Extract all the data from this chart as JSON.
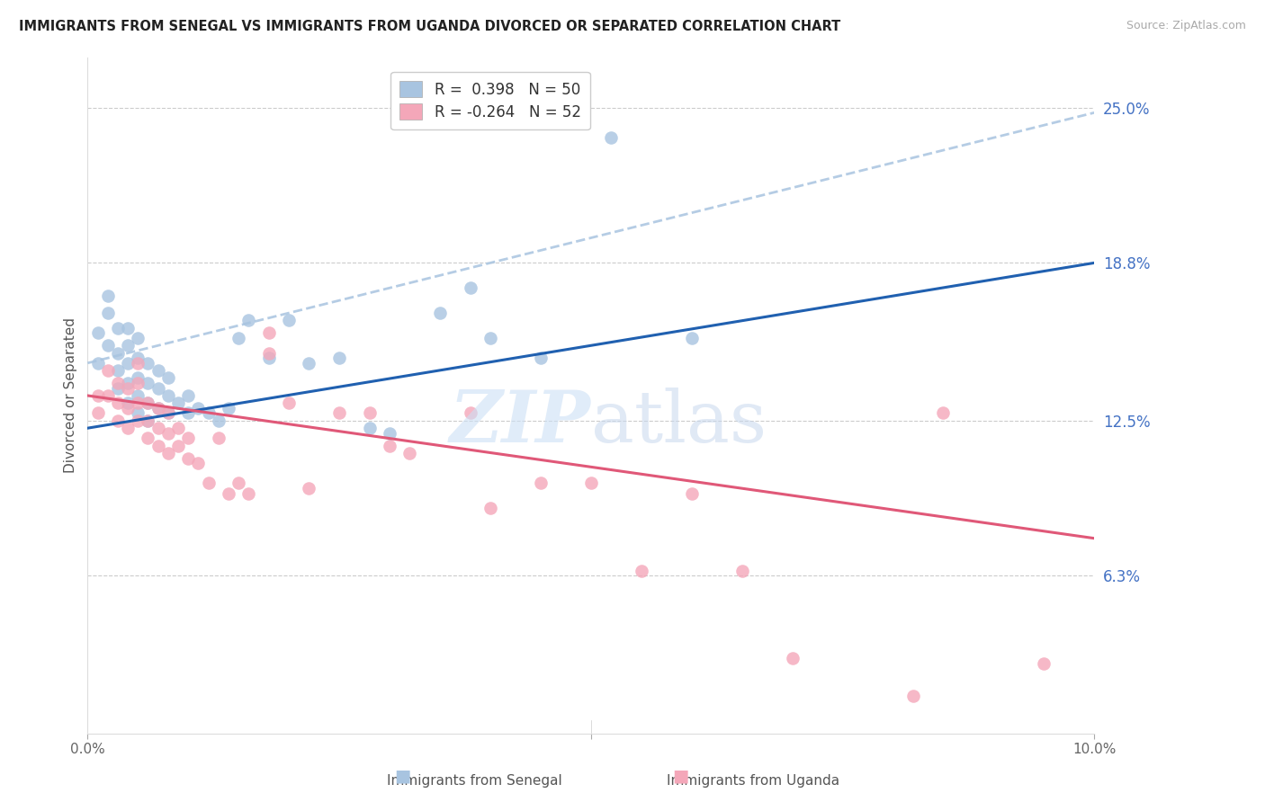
{
  "title": "IMMIGRANTS FROM SENEGAL VS IMMIGRANTS FROM UGANDA DIVORCED OR SEPARATED CORRELATION CHART",
  "source": "Source: ZipAtlas.com",
  "ylabel": "Divorced or Separated",
  "xlim": [
    0.0,
    0.1
  ],
  "ylim": [
    0.0,
    0.27
  ],
  "ytick_labels_right": [
    "25.0%",
    "18.8%",
    "12.5%",
    "6.3%"
  ],
  "ytick_vals_right": [
    0.25,
    0.188,
    0.125,
    0.063
  ],
  "senegal_color": "#a8c4e0",
  "uganda_color": "#f4a7b9",
  "senegal_line_color": "#2060b0",
  "uganda_line_color": "#e05878",
  "dashed_line_color": "#a8c4e0",
  "senegal_line_x0": 0.0,
  "senegal_line_y0": 0.122,
  "senegal_line_x1": 0.1,
  "senegal_line_y1": 0.188,
  "uganda_line_x0": 0.0,
  "uganda_line_y0": 0.135,
  "uganda_line_x1": 0.1,
  "uganda_line_y1": 0.078,
  "dashed_line_x0": 0.0,
  "dashed_line_y0": 0.148,
  "dashed_line_x1": 0.1,
  "dashed_line_y1": 0.248,
  "senegal_x": [
    0.001,
    0.001,
    0.002,
    0.002,
    0.002,
    0.003,
    0.003,
    0.003,
    0.003,
    0.004,
    0.004,
    0.004,
    0.004,
    0.004,
    0.005,
    0.005,
    0.005,
    0.005,
    0.005,
    0.006,
    0.006,
    0.006,
    0.006,
    0.007,
    0.007,
    0.007,
    0.008,
    0.008,
    0.008,
    0.009,
    0.01,
    0.01,
    0.011,
    0.012,
    0.013,
    0.014,
    0.015,
    0.016,
    0.018,
    0.02,
    0.022,
    0.025,
    0.028,
    0.03,
    0.035,
    0.038,
    0.04,
    0.045,
    0.052,
    0.06
  ],
  "senegal_y": [
    0.148,
    0.16,
    0.155,
    0.168,
    0.175,
    0.138,
    0.145,
    0.152,
    0.162,
    0.132,
    0.14,
    0.148,
    0.155,
    0.162,
    0.128,
    0.135,
    0.142,
    0.15,
    0.158,
    0.125,
    0.132,
    0.14,
    0.148,
    0.13,
    0.138,
    0.145,
    0.128,
    0.135,
    0.142,
    0.132,
    0.128,
    0.135,
    0.13,
    0.128,
    0.125,
    0.13,
    0.158,
    0.165,
    0.15,
    0.165,
    0.148,
    0.15,
    0.122,
    0.12,
    0.168,
    0.178,
    0.158,
    0.15,
    0.238,
    0.158
  ],
  "uganda_x": [
    0.001,
    0.001,
    0.002,
    0.002,
    0.003,
    0.003,
    0.003,
    0.004,
    0.004,
    0.004,
    0.005,
    0.005,
    0.005,
    0.005,
    0.006,
    0.006,
    0.006,
    0.007,
    0.007,
    0.007,
    0.008,
    0.008,
    0.008,
    0.009,
    0.009,
    0.01,
    0.01,
    0.011,
    0.012,
    0.013,
    0.014,
    0.015,
    0.016,
    0.018,
    0.018,
    0.02,
    0.022,
    0.025,
    0.028,
    0.03,
    0.032,
    0.038,
    0.04,
    0.045,
    0.05,
    0.055,
    0.06,
    0.065,
    0.07,
    0.082,
    0.085,
    0.095
  ],
  "uganda_y": [
    0.128,
    0.135,
    0.135,
    0.145,
    0.125,
    0.132,
    0.14,
    0.122,
    0.13,
    0.138,
    0.125,
    0.132,
    0.14,
    0.148,
    0.118,
    0.125,
    0.132,
    0.115,
    0.122,
    0.13,
    0.112,
    0.12,
    0.128,
    0.115,
    0.122,
    0.11,
    0.118,
    0.108,
    0.1,
    0.118,
    0.096,
    0.1,
    0.096,
    0.152,
    0.16,
    0.132,
    0.098,
    0.128,
    0.128,
    0.115,
    0.112,
    0.128,
    0.09,
    0.1,
    0.1,
    0.065,
    0.096,
    0.065,
    0.03,
    0.015,
    0.128,
    0.028
  ]
}
